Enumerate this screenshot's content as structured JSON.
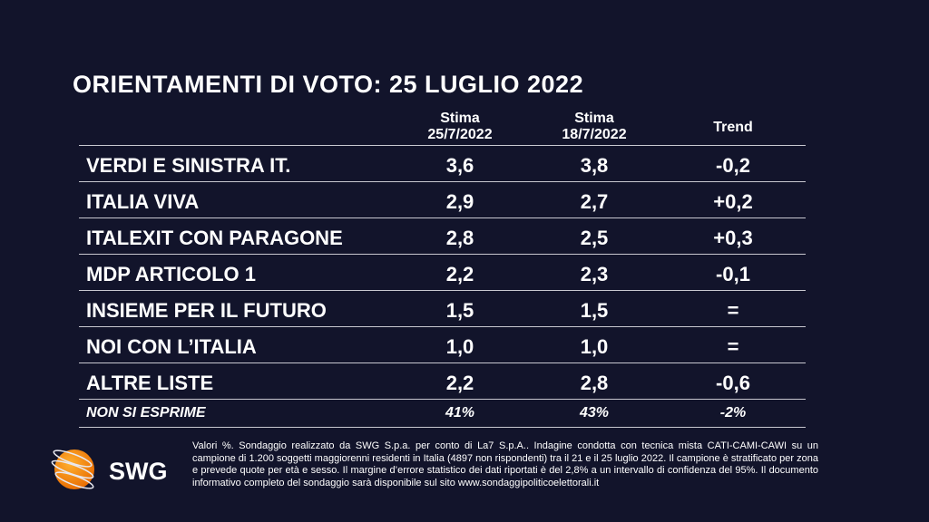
{
  "title": "ORIENTAMENTI DI VOTO: 25 LUGLIO 2022",
  "chart_data": {
    "type": "table",
    "columns": [
      {
        "line1": "Stima",
        "line2": "25/7/2022"
      },
      {
        "line1": "Stima",
        "line2": "18/7/2022"
      },
      {
        "line1": "Trend",
        "line2": ""
      }
    ],
    "rows": [
      {
        "name": "VERDI E SINISTRA IT.",
        "v1": "3,6",
        "v2": "3,8",
        "trend": "-0,2"
      },
      {
        "name": "ITALIA VIVA",
        "v1": "2,9",
        "v2": "2,7",
        "trend": "+0,2"
      },
      {
        "name": "ITALEXIT CON PARAGONE",
        "v1": "2,8",
        "v2": "2,5",
        "trend": "+0,3"
      },
      {
        "name": "MDP ARTICOLO 1",
        "v1": "2,2",
        "v2": "2,3",
        "trend": "-0,1"
      },
      {
        "name": "INSIEME PER IL FUTURO",
        "v1": "1,5",
        "v2": "1,5",
        "trend": "="
      },
      {
        "name": "NOI CON L’ITALIA",
        "v1": "1,0",
        "v2": "1,0",
        "trend": "="
      },
      {
        "name": "ALTRE LISTE",
        "v1": "2,2",
        "v2": "2,8",
        "trend": "-0,6"
      },
      {
        "name": "NON SI ESPRIME",
        "v1": "41%",
        "v2": "43%",
        "trend": "-2%"
      }
    ]
  },
  "logo": {
    "text": "SWG"
  },
  "footnote": "Valori %. Sondaggio realizzato da SWG S.p.a. per conto di La7 S.p.A.. Indagine condotta con tecnica mista CATI-CAMI-CAWI su un campione di 1.200 soggetti maggiorenni residenti in Italia (4897 non rispondenti) tra il 21 e il 25 luglio 2022. Il campione è stratificato per zona e prevede quote per età e sesso. Il margine d’errore statistico dei dati riportati è del 2,8% a un intervallo di confidenza del 95%. Il documento informativo completo del sondaggio sarà disponibile sul sito www.sondaggipoliticoelettorali.it"
}
